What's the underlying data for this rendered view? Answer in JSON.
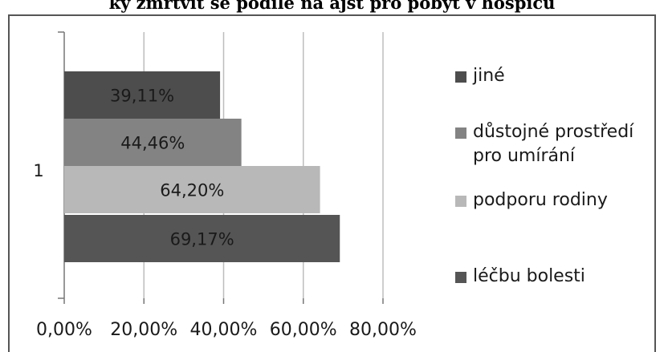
{
  "chart_data": {
    "type": "bar",
    "orientation": "horizontal",
    "title": "ky zmrtvit se podíle na ajst pro pobyt v hospicu",
    "categories": [
      "1"
    ],
    "series": [
      {
        "name": "léčbu bolesti",
        "values": [
          69.17
        ],
        "label": "69,17%",
        "color": "#555555"
      },
      {
        "name": "podporu rodiny",
        "values": [
          64.2
        ],
        "label": "64,20%",
        "color": "#b8b8b8"
      },
      {
        "name": "důstojné prostředí pro umírání",
        "values": [
          44.46
        ],
        "label": "44,46%",
        "color": "#838383"
      },
      {
        "name": "jiné",
        "values": [
          39.11
        ],
        "label": "39,11%",
        "color": "#4d4d4d"
      }
    ],
    "xlim": [
      0,
      80
    ],
    "x_ticks": [
      {
        "value": 0,
        "label": "0,00%"
      },
      {
        "value": 20,
        "label": "20,00%"
      },
      {
        "value": 40,
        "label": "40,00%"
      },
      {
        "value": 60,
        "label": "60,00%"
      },
      {
        "value": 80,
        "label": "80,00%"
      }
    ],
    "grid": true,
    "legend_position": "right",
    "legend_order": [
      "jiné",
      "důstojné prostředí pro umírání",
      "podporu rodiny",
      "léčbu bolesti"
    ]
  }
}
